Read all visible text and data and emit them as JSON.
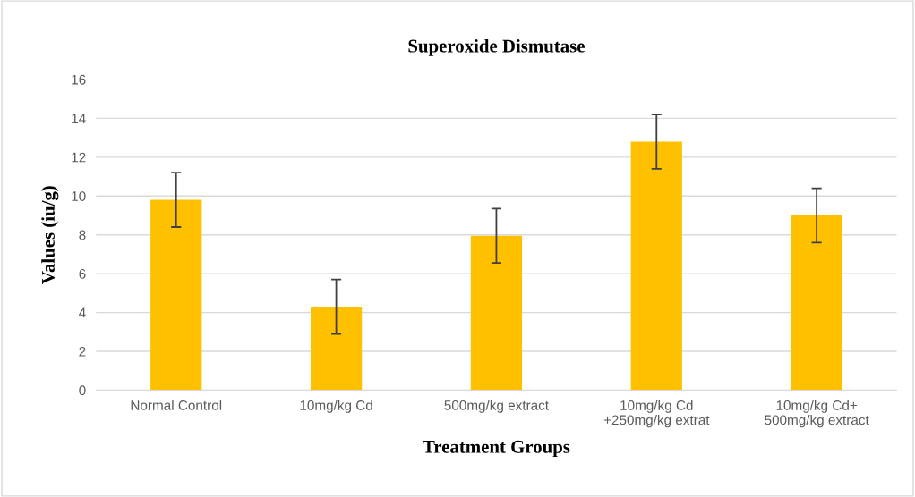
{
  "chart_data": {
    "type": "bar",
    "title": "Superoxide Dismutase",
    "xlabel": "Treatment Groups",
    "ylabel": "Values (iu/g)",
    "categories": [
      "Normal Control",
      "10mg/kg Cd",
      "500mg/kg extract",
      "10mg/kg Cd\n+250mg/kg extrat",
      "10mg/kg Cd+\n500mg/kg extract"
    ],
    "values": [
      9.8,
      4.3,
      7.95,
      12.8,
      9.0
    ],
    "errors": [
      1.4,
      1.4,
      1.4,
      1.4,
      1.4
    ],
    "color": "#ffc000",
    "ylim": [
      0,
      16
    ],
    "yticks": [
      0,
      2,
      4,
      6,
      8,
      10,
      12,
      14,
      16
    ],
    "grid": "y"
  }
}
